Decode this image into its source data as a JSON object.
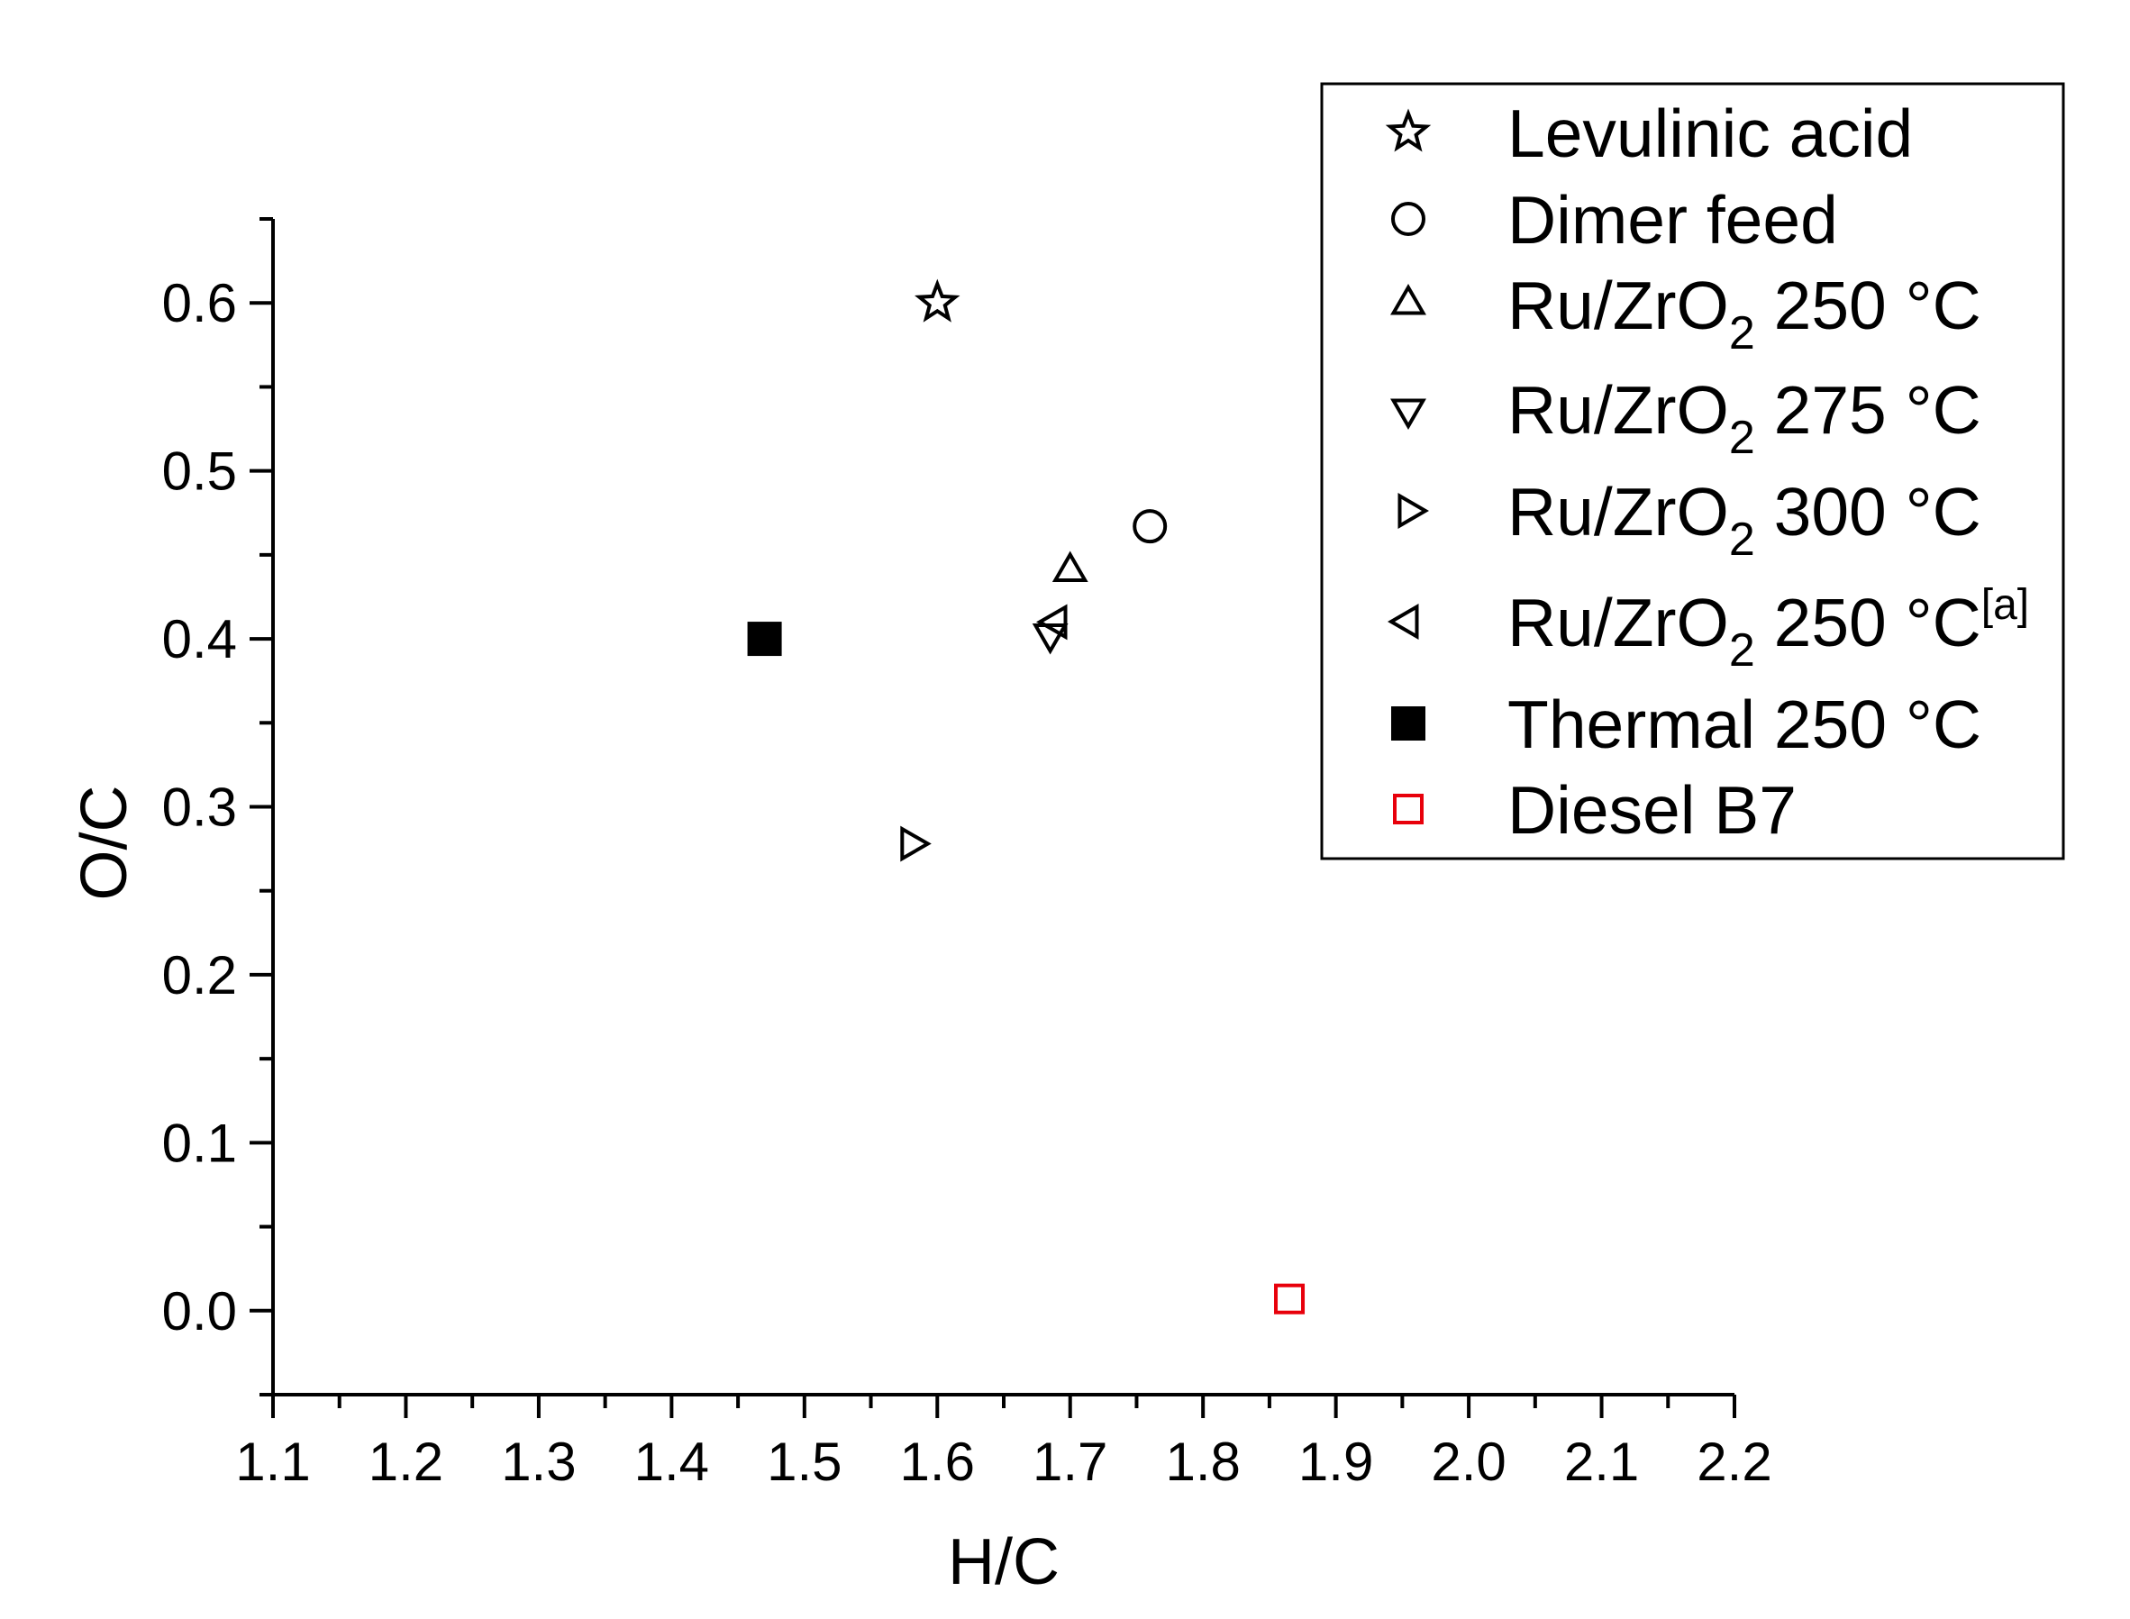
{
  "chart_data": {
    "type": "scatter",
    "title": "",
    "xlabel": "H/C",
    "ylabel": "O/C",
    "xlim": [
      1.1,
      2.2
    ],
    "ylim": [
      -0.05,
      0.65
    ],
    "x_ticks": [
      "1.1",
      "1.2",
      "1.3",
      "1.4",
      "1.5",
      "1.6",
      "1.7",
      "1.8",
      "1.9",
      "2.0",
      "2.1",
      "2.2"
    ],
    "y_ticks": [
      "0.0",
      "0.1",
      "0.2",
      "0.3",
      "0.4",
      "0.5",
      "0.6"
    ],
    "grid": false,
    "legend_position": "top-right",
    "series": [
      {
        "name": "Levulinic acid",
        "legend": {
          "main": "Levulinic acid",
          "sub": "",
          "rest": "",
          "sup": ""
        },
        "marker": "star",
        "color": "#000000",
        "filled": false,
        "x": 1.6,
        "y": 0.6
      },
      {
        "name": "Dimer feed",
        "legend": {
          "main": "Dimer feed",
          "sub": "",
          "rest": "",
          "sup": ""
        },
        "marker": "circle",
        "color": "#000000",
        "filled": false,
        "x": 1.76,
        "y": 0.467
      },
      {
        "name": "Ru/ZrO2 250 °C",
        "legend": {
          "main": "Ru/ZrO",
          "sub": "2",
          "rest": " 250 °C",
          "sup": ""
        },
        "marker": "triangle-up",
        "color": "#000000",
        "filled": false,
        "x": 1.7,
        "y": 0.44
      },
      {
        "name": "Ru/ZrO2 275 °C",
        "legend": {
          "main": "Ru/ZrO",
          "sub": "2",
          "rest": " 275 °C",
          "sup": ""
        },
        "marker": "triangle-down",
        "color": "#000000",
        "filled": false,
        "x": 1.685,
        "y": 0.403
      },
      {
        "name": "Ru/ZrO2 300 °C",
        "legend": {
          "main": "Ru/ZrO",
          "sub": "2",
          "rest": " 300 °C",
          "sup": ""
        },
        "marker": "triangle-right",
        "color": "#000000",
        "filled": false,
        "x": 1.58,
        "y": 0.278
      },
      {
        "name": "Ru/ZrO2 250 °C[a]",
        "legend": {
          "main": "Ru/ZrO",
          "sub": "2",
          "rest": " 250 °C",
          "sup": "[a]"
        },
        "marker": "triangle-left",
        "color": "#000000",
        "filled": false,
        "x": 1.69,
        "y": 0.41
      },
      {
        "name": "Thermal 250 °C",
        "legend": {
          "main": "Thermal 250 °C",
          "sub": "",
          "rest": "",
          "sup": ""
        },
        "marker": "square",
        "color": "#000000",
        "filled": true,
        "x": 1.47,
        "y": 0.4
      },
      {
        "name": "Diesel B7",
        "legend": {
          "main": "Diesel B7",
          "sub": "",
          "rest": "",
          "sup": ""
        },
        "marker": "square",
        "color": "#e8000b",
        "filled": false,
        "x": 1.865,
        "y": 0.007
      }
    ]
  }
}
